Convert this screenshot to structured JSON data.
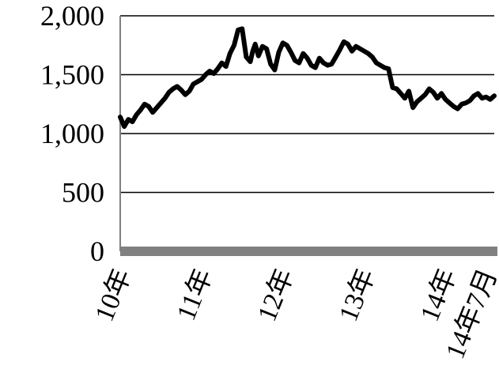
{
  "chart_data": {
    "type": "line",
    "title": "",
    "xlabel": "",
    "ylabel": "",
    "ylim": [
      0,
      2000
    ],
    "yticks": [
      "2,000",
      "1,500",
      "1,000",
      "500",
      "0"
    ],
    "ytick_values": [
      2000,
      1500,
      1000,
      500,
      0
    ],
    "xticks": [
      "10年",
      "11年",
      "12年",
      "13年",
      "14年",
      "14年7月"
    ],
    "xtick_positions": [
      2010.0,
      2011.0,
      2012.0,
      2013.0,
      2014.0,
      2014.5
    ],
    "grid": true,
    "legend": "none",
    "line_color": "#000000",
    "baseline_color": "#808080",
    "series": [
      {
        "x": [
          2010.0,
          2010.05,
          2010.1,
          2010.15,
          2010.2,
          2010.25,
          2010.3,
          2010.35,
          2010.4,
          2010.45,
          2010.5,
          2010.55,
          2010.6,
          2010.65,
          2010.7,
          2010.75,
          2010.8,
          2010.85,
          2010.9,
          2010.95,
          2011.0,
          2011.05,
          2011.1,
          2011.15,
          2011.2,
          2011.25,
          2011.3,
          2011.35,
          2011.4,
          2011.45,
          2011.5,
          2011.55,
          2011.6,
          2011.63,
          2011.66,
          2011.7,
          2011.75,
          2011.8,
          2011.85,
          2011.9,
          2011.95,
          2012.0,
          2012.05,
          2012.1,
          2012.15,
          2012.2,
          2012.25,
          2012.3,
          2012.35,
          2012.4,
          2012.45,
          2012.5,
          2012.55,
          2012.6,
          2012.65,
          2012.7,
          2012.75,
          2012.8,
          2012.85,
          2012.9,
          2012.95,
          2013.0,
          2013.05,
          2013.1,
          2013.15,
          2013.2,
          2013.25,
          2013.3,
          2013.35,
          2013.4,
          2013.45,
          2013.5,
          2013.55,
          2013.6,
          2013.65,
          2013.7,
          2013.75,
          2013.8,
          2013.85,
          2013.9,
          2013.95,
          2014.0,
          2014.05,
          2014.1,
          2014.15,
          2014.2,
          2014.25,
          2014.3,
          2014.35,
          2014.4,
          2014.45,
          2014.5,
          2014.55,
          2014.6
        ],
        "y": [
          1140,
          1060,
          1120,
          1100,
          1160,
          1200,
          1250,
          1230,
          1180,
          1220,
          1260,
          1300,
          1350,
          1380,
          1400,
          1370,
          1330,
          1360,
          1420,
          1440,
          1460,
          1500,
          1530,
          1510,
          1550,
          1600,
          1570,
          1680,
          1750,
          1880,
          1890,
          1650,
          1610,
          1700,
          1760,
          1660,
          1740,
          1720,
          1590,
          1540,
          1690,
          1770,
          1750,
          1690,
          1620,
          1600,
          1680,
          1640,
          1580,
          1560,
          1640,
          1600,
          1580,
          1590,
          1650,
          1710,
          1780,
          1760,
          1700,
          1740,
          1720,
          1700,
          1680,
          1650,
          1600,
          1580,
          1560,
          1550,
          1390,
          1380,
          1340,
          1300,
          1360,
          1220,
          1270,
          1300,
          1330,
          1380,
          1350,
          1300,
          1340,
          1290,
          1260,
          1230,
          1210,
          1250,
          1260,
          1280,
          1320,
          1340,
          1300,
          1310,
          1290,
          1320
        ]
      }
    ]
  }
}
